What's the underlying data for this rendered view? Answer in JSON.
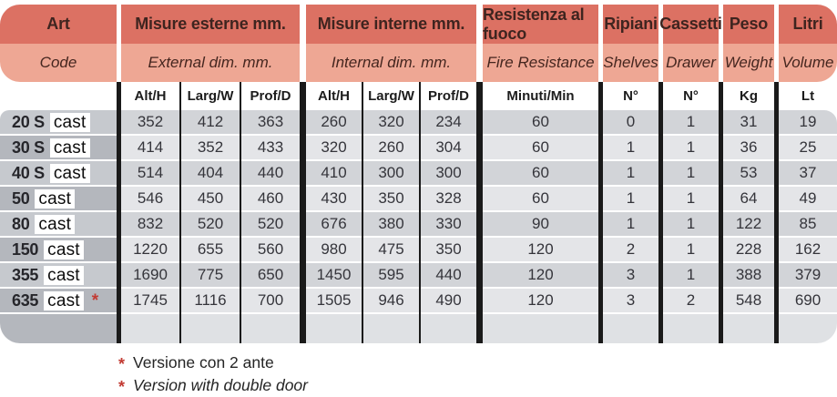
{
  "header": {
    "groups": [
      {
        "it": "Art",
        "en": "Code"
      },
      {
        "it": "Misure esterne mm.",
        "en": "External dim. mm."
      },
      {
        "it": "Misure interne mm.",
        "en": "Internal dim. mm."
      },
      {
        "it": "Resistenza al fuoco",
        "en": "Fire Resistance"
      },
      {
        "it": "Ripiani",
        "en": "Shelves"
      },
      {
        "it": "Cassetti",
        "en": "Drawer"
      },
      {
        "it": "Peso",
        "en": "Weight"
      },
      {
        "it": "Litri",
        "en": "Volume"
      }
    ],
    "units": [
      "Alt/H",
      "Larg/W",
      "Prof/D",
      "Alt/H",
      "Larg/W",
      "Prof/D",
      "Minuti/Min",
      "N°",
      "N°",
      "Kg",
      "Lt"
    ]
  },
  "table": {
    "rows": [
      {
        "code": "20 S",
        "brand": "cast",
        "values": [
          "352",
          "412",
          "363",
          "260",
          "320",
          "234",
          "60",
          "0",
          "1",
          "31",
          "19"
        ]
      },
      {
        "code": "30 S",
        "brand": "cast",
        "values": [
          "414",
          "352",
          "433",
          "320",
          "260",
          "304",
          "60",
          "1",
          "1",
          "36",
          "25"
        ]
      },
      {
        "code": "40 S",
        "brand": "cast",
        "values": [
          "514",
          "404",
          "440",
          "410",
          "300",
          "300",
          "60",
          "1",
          "1",
          "53",
          "37"
        ]
      },
      {
        "code": "50",
        "brand": "cast",
        "values": [
          "546",
          "450",
          "460",
          "430",
          "350",
          "328",
          "60",
          "1",
          "1",
          "64",
          "49"
        ]
      },
      {
        "code": "80",
        "brand": "cast",
        "values": [
          "832",
          "520",
          "520",
          "676",
          "380",
          "330",
          "90",
          "1",
          "1",
          "122",
          "85"
        ]
      },
      {
        "code": "150",
        "brand": "cast",
        "values": [
          "1220",
          "655",
          "560",
          "980",
          "475",
          "350",
          "120",
          "2",
          "1",
          "228",
          "162"
        ]
      },
      {
        "code": "355",
        "brand": "cast",
        "values": [
          "1690",
          "775",
          "650",
          "1450",
          "595",
          "440",
          "120",
          "3",
          "1",
          "388",
          "379"
        ]
      },
      {
        "code": "635",
        "brand": "cast",
        "mark": "*",
        "values": [
          "1745",
          "1116",
          "700",
          "1505",
          "946",
          "490",
          "120",
          "3",
          "2",
          "548",
          "690"
        ]
      }
    ]
  },
  "footnotes": {
    "symbol": "*",
    "it": "Versione con 2 ante",
    "en": "Version with double door"
  },
  "colors": {
    "header_primary": "#dc7163",
    "header_secondary": "#eea794",
    "accent_red": "#c23b33"
  }
}
